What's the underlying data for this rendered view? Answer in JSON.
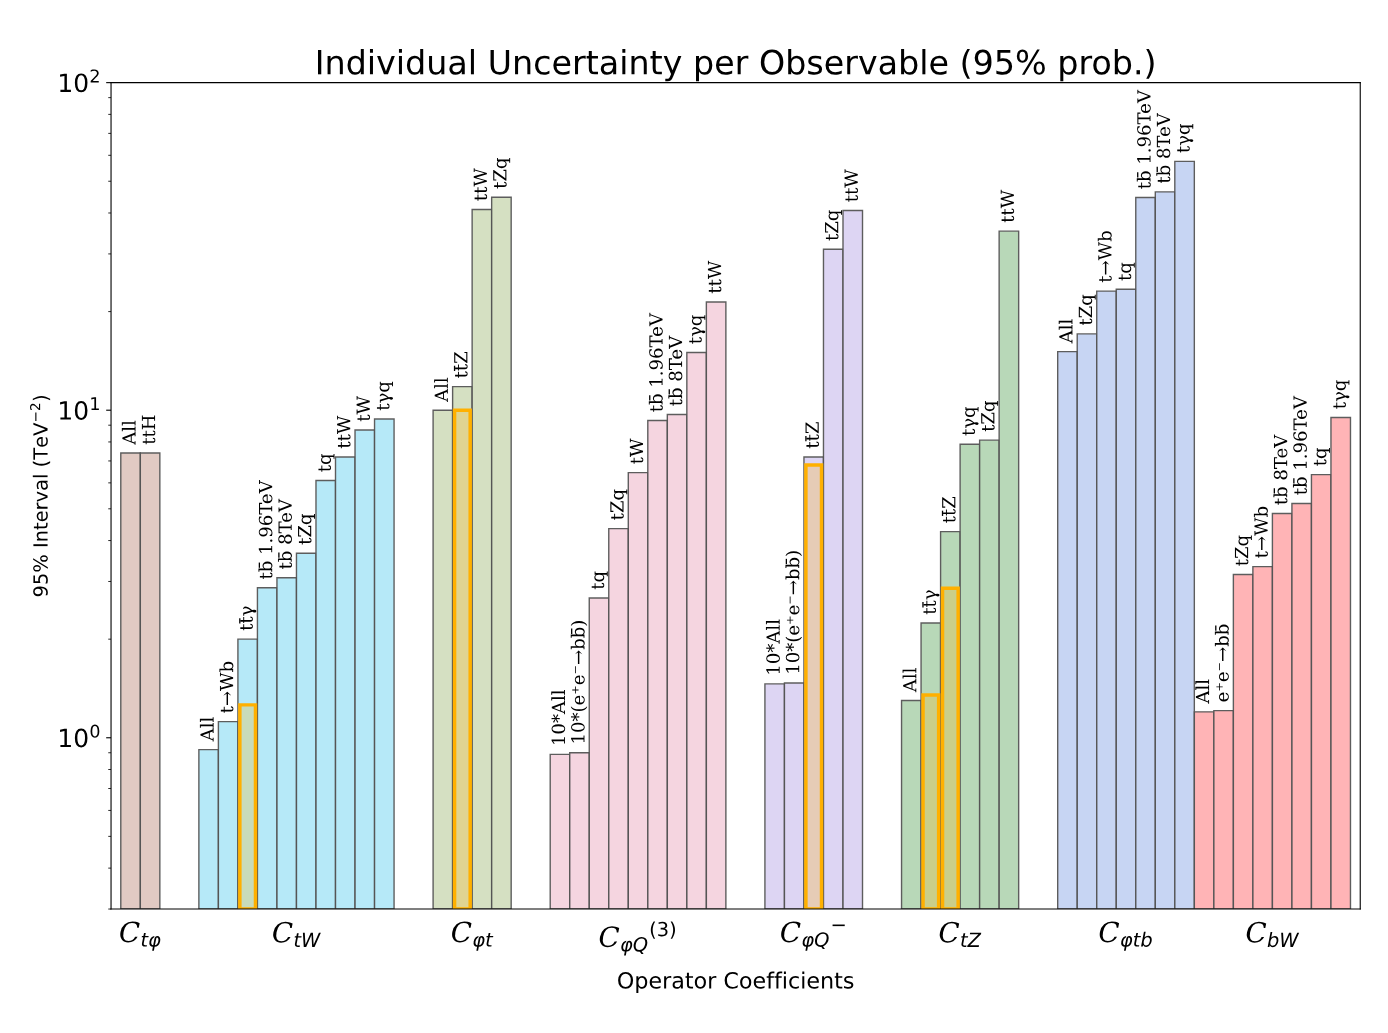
{
  "chart_data": {
    "type": "bar",
    "title": "Individual Uncertainty per Observable (95% prob.)",
    "xlabel": "Operator Coefficients",
    "ylabel": "95% Interval (TeV$^{−2}$)",
    "categories": [
      "All",
      "ttH",
      null,
      null,
      "All",
      "t→Wb",
      "tt̄γ",
      "tb̄ 1.96TeV",
      "tb̄ 8TeV",
      "tZq",
      "tq",
      "ttW",
      "tW",
      "tγq",
      null,
      null,
      "All",
      "tt̄Z",
      "ttW",
      "tZq",
      null,
      null,
      "10*All",
      "10*(e⁺e⁻→bb̄)",
      "tq",
      "tZq",
      "tW",
      "tb̄ 1.96TeV",
      "tb̄ 8TeV",
      "tγq",
      "ttW",
      null,
      null,
      "10*All",
      "10*(e⁺e⁻→bb̄)",
      "tt̄Z",
      "tZq",
      "ttW",
      null,
      null,
      "All",
      "tt̄γ",
      "tt̄Z",
      "tγq",
      "tZq",
      "ttW",
      null,
      null,
      "All",
      "tZq",
      "t→Wb",
      "tq",
      "tb̄ 1.96TeV",
      "tb̄ 8TeV",
      "tγq",
      "All",
      "e⁺e⁻→bb̄",
      "tZq",
      "t→Wb",
      "tb̄ 8TeV",
      "tb̄ 1.96TeV",
      "tq",
      "tγq"
    ],
    "series": [
      {
        "name": "C$_{tφ}$",
        "color": "#e0c8c0",
        "values": [
          7.4,
          7.4,
          null,
          null,
          null,
          null,
          null,
          null,
          null,
          null,
          null,
          null,
          null,
          null,
          null,
          null,
          null,
          null,
          null,
          null,
          null,
          null,
          null,
          null,
          null,
          null,
          null,
          null,
          null,
          null,
          null,
          null,
          null,
          null,
          null,
          null,
          null,
          null,
          null,
          null,
          null,
          null,
          null,
          null,
          null,
          null,
          null,
          null,
          null,
          null,
          null,
          null,
          null,
          null,
          null,
          null,
          null,
          null,
          null,
          null,
          null,
          null,
          null
        ]
      },
      {
        "name": "C$_{tW}$",
        "color": "#b3e8f8",
        "values": [
          null,
          null,
          null,
          null,
          0.92,
          1.12,
          2.0,
          2.87,
          3.08,
          3.66,
          6.1,
          7.2,
          8.7,
          9.4,
          null,
          null,
          null,
          null,
          null,
          null,
          null,
          null,
          null,
          null,
          null,
          null,
          null,
          null,
          null,
          null,
          null,
          null,
          null,
          null,
          null,
          null,
          null,
          null,
          null,
          null,
          null,
          null,
          null,
          null,
          null,
          null,
          null,
          null,
          null,
          null,
          null,
          null,
          null,
          null,
          null,
          null,
          null,
          null,
          null,
          null,
          null,
          null,
          null
        ]
      },
      {
        "name": "C$_{φt}$",
        "color": "#d3dfbf",
        "values": [
          null,
          null,
          null,
          null,
          null,
          null,
          null,
          null,
          null,
          null,
          null,
          null,
          null,
          null,
          null,
          null,
          10.0,
          11.8,
          41,
          44.7,
          null,
          null,
          null,
          null,
          null,
          null,
          null,
          null,
          null,
          null,
          null,
          null,
          null,
          null,
          null,
          null,
          null,
          null,
          null,
          null,
          null,
          null,
          null,
          null,
          null,
          null,
          null,
          null,
          null,
          null,
          null,
          null,
          null,
          null,
          null,
          null,
          null,
          null,
          null,
          null,
          null,
          null,
          null
        ]
      },
      {
        "name": "C$_{φQ}$$^{(3)}$",
        "color": "#f5d3df",
        "values": [
          null,
          null,
          null,
          null,
          null,
          null,
          null,
          null,
          null,
          null,
          null,
          null,
          null,
          null,
          null,
          null,
          null,
          null,
          null,
          null,
          null,
          null,
          0.89,
          0.9,
          2.67,
          4.35,
          6.45,
          9.3,
          9.7,
          15.0,
          21.4,
          null,
          null,
          null,
          null,
          null,
          null,
          null,
          null,
          null,
          null,
          null,
          null,
          null,
          null,
          null,
          null,
          null,
          null,
          null,
          null,
          null,
          null,
          null,
          null,
          null,
          null,
          null,
          null,
          null,
          null,
          null,
          null
        ]
      },
      {
        "name": "C$_{φQ}$$^{−}$",
        "color": "#dcd3f3",
        "values": [
          null,
          null,
          null,
          null,
          null,
          null,
          null,
          null,
          null,
          null,
          null,
          null,
          null,
          null,
          null,
          null,
          null,
          null,
          null,
          null,
          null,
          null,
          null,
          null,
          null,
          null,
          null,
          null,
          null,
          null,
          null,
          null,
          null,
          1.46,
          1.47,
          7.2,
          31,
          40.7,
          null,
          null,
          null,
          null,
          null,
          null,
          null,
          null,
          null,
          null,
          null,
          null,
          null,
          null,
          null,
          null,
          null,
          null,
          null,
          null,
          null,
          null,
          null,
          null,
          null
        ]
      },
      {
        "name": "C$_{tZ}$",
        "color": "#b5d6b5",
        "values": [
          null,
          null,
          null,
          null,
          null,
          null,
          null,
          null,
          null,
          null,
          null,
          null,
          null,
          null,
          null,
          null,
          null,
          null,
          null,
          null,
          null,
          null,
          null,
          null,
          null,
          null,
          null,
          null,
          null,
          null,
          null,
          null,
          null,
          null,
          null,
          null,
          null,
          null,
          null,
          null,
          1.3,
          2.24,
          4.26,
          7.87,
          8.1,
          35.2,
          null,
          null,
          null,
          null,
          null,
          null,
          null,
          null,
          null,
          null,
          null,
          null,
          null,
          null,
          null,
          null,
          null
        ]
      },
      {
        "name": "C$_{φtb}$",
        "color": "#c5d3f3",
        "values": [
          null,
          null,
          null,
          null,
          null,
          null,
          null,
          null,
          null,
          null,
          null,
          null,
          null,
          null,
          null,
          null,
          null,
          null,
          null,
          null,
          null,
          null,
          null,
          null,
          null,
          null,
          null,
          null,
          null,
          null,
          null,
          null,
          null,
          null,
          null,
          null,
          null,
          null,
          null,
          null,
          null,
          null,
          null,
          null,
          null,
          null,
          null,
          null,
          15.1,
          17.1,
          23.1,
          23.4,
          44.6,
          46.4,
          57.5,
          null,
          null,
          null,
          null,
          null,
          null,
          null,
          null
        ]
      },
      {
        "name": "C$_{bW}$",
        "color": "#ffb0b3",
        "values": [
          null,
          null,
          null,
          null,
          null,
          null,
          null,
          null,
          null,
          null,
          null,
          null,
          null,
          null,
          null,
          null,
          null,
          null,
          null,
          null,
          null,
          null,
          null,
          null,
          null,
          null,
          null,
          null,
          null,
          null,
          null,
          null,
          null,
          null,
          null,
          null,
          null,
          null,
          null,
          null,
          null,
          null,
          null,
          null,
          null,
          null,
          null,
          null,
          null,
          null,
          null,
          null,
          null,
          null,
          null,
          1.2,
          1.21,
          3.15,
          3.33,
          4.84,
          5.19,
          6.36,
          9.5
        ]
      },
      {
        "color": "#ffb000",
        "values": [
          null,
          null,
          null,
          null,
          null,
          null,
          1.26,
          null,
          null,
          null,
          null,
          null,
          null,
          null,
          null,
          null,
          null,
          10.0,
          null,
          null,
          null,
          null,
          null,
          null,
          null,
          null,
          null,
          null,
          null,
          null,
          null,
          null,
          null,
          null,
          null,
          6.8,
          null,
          null,
          null,
          null,
          null,
          1.35,
          2.86,
          null,
          null,
          null,
          null,
          null,
          null,
          null,
          null,
          null,
          null,
          null,
          null,
          null,
          null,
          null,
          null,
          null,
          null,
          null,
          null
        ]
      }
    ],
    "log": "y",
    "ylim": [
      0.3,
      100
    ],
    "yticks": [
      {
        "value": 1,
        "label": "10$^{0}$"
      },
      {
        "value": 10,
        "label": "10$^{1}$"
      },
      {
        "value": 100,
        "label": "10$^{2}$"
      }
    ],
    "grid": false
  }
}
